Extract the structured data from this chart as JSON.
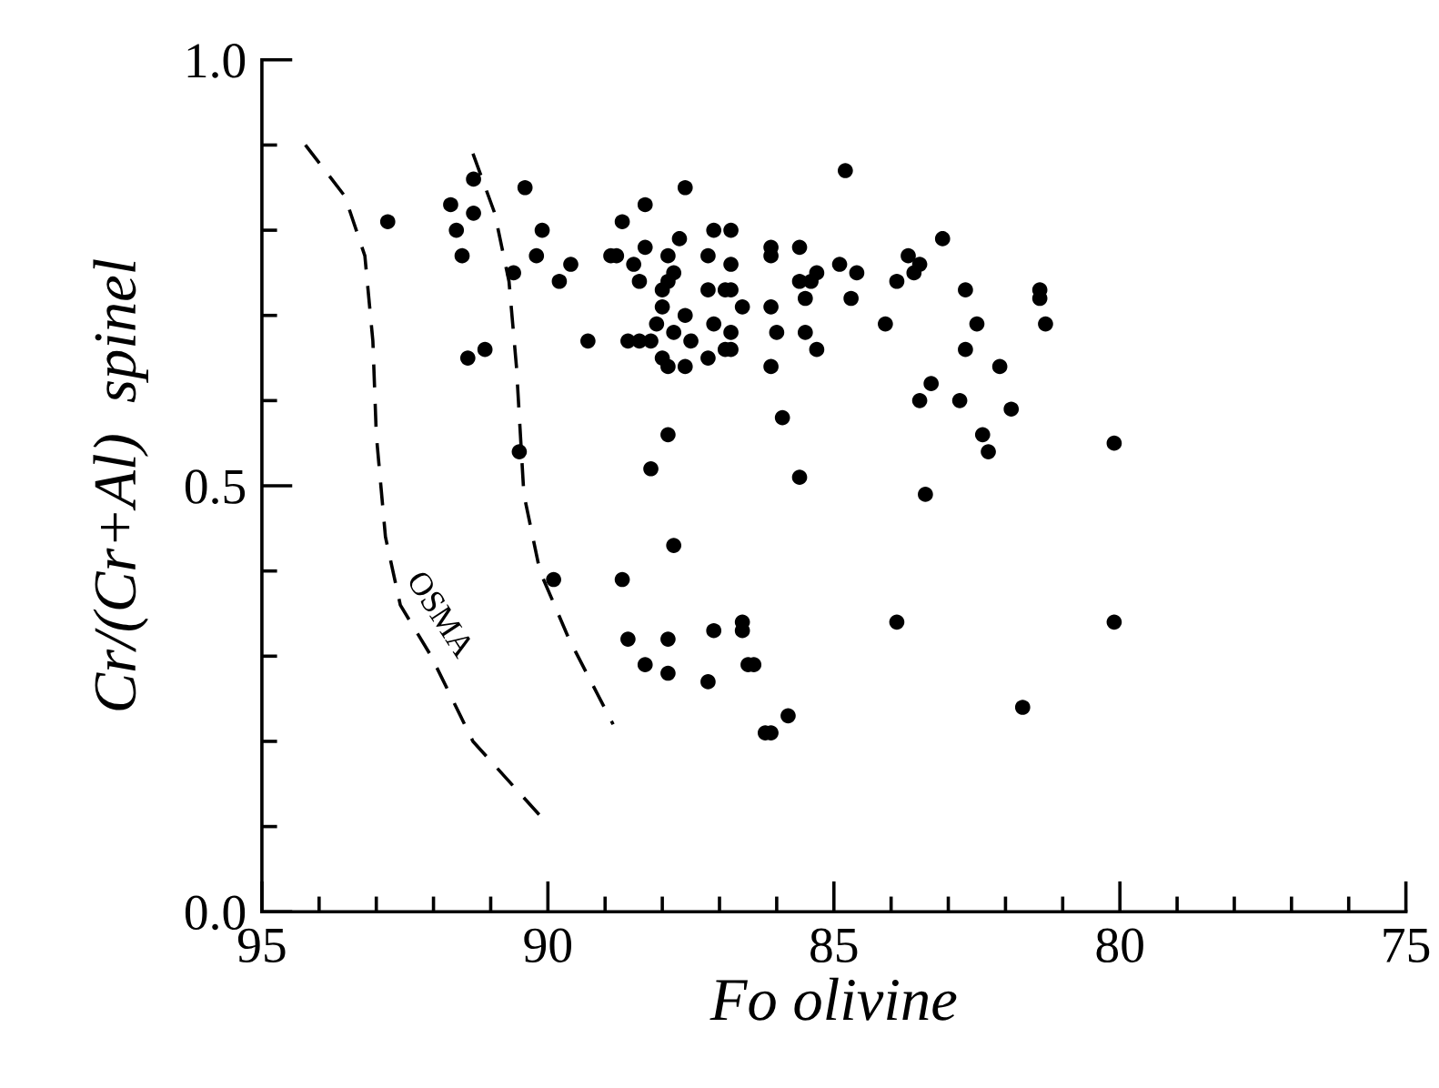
{
  "chart_data": {
    "type": "scatter",
    "xlabel": "Fo olivine",
    "ylabel": "Cr/(Cr+Al)  spinel",
    "xlim": [
      95,
      75
    ],
    "ylim": [
      0,
      1
    ],
    "xticks": [
      95,
      {
        "value": 94,
        "label": null
      },
      {
        "value": 93,
        "label": null
      },
      {
        "value": 92,
        "label": null
      },
      {
        "value": 91,
        "label": null
      },
      90,
      {
        "value": 89,
        "label": null
      },
      {
        "value": 88,
        "label": null
      },
      {
        "value": 87,
        "label": null
      },
      {
        "value": 86,
        "label": null
      },
      85,
      {
        "value": 84,
        "label": null
      },
      {
        "value": 83,
        "label": null
      },
      {
        "value": 82,
        "label": null
      },
      {
        "value": 81,
        "label": null
      },
      80,
      {
        "value": 79,
        "label": null
      },
      {
        "value": 78,
        "label": null
      },
      {
        "value": 77,
        "label": null
      },
      {
        "value": 76,
        "label": null
      },
      75
    ],
    "yticks": [
      {
        "value": 0,
        "label": "0.0"
      },
      {
        "value": 0.1,
        "label": null
      },
      {
        "value": 0.2,
        "label": null
      },
      {
        "value": 0.3,
        "label": null
      },
      {
        "value": 0.4,
        "label": null
      },
      0.5,
      {
        "value": 0.6,
        "label": null
      },
      {
        "value": 0.7,
        "label": null
      },
      {
        "value": 0.8,
        "label": null
      },
      {
        "value": 0.9,
        "label": null
      },
      {
        "value": 1,
        "label": "1.0"
      }
    ],
    "grid": false,
    "legend": false,
    "annotations": [
      "OSMA"
    ],
    "series": [
      {
        "color": "#000000",
        "marker": "circle",
        "x": [
          92.8,
          91.7,
          91.6,
          91.3,
          91.3,
          91.5,
          90.4,
          90.1,
          90.2,
          90.6,
          89.8,
          89.6,
          88.9,
          88.8,
          88.5,
          88.4,
          88.7,
          88.3,
          88.3,
          89.3,
          88.6,
          88.4,
          88.2,
          91.4,
          91.1,
          90.5,
          88.2,
          89.9,
          88.7,
          88.6,
          88.3,
          84.8,
          87.6,
          87.9,
          87.7,
          87.1,
          86.8,
          87.2,
          86.8,
          86.1,
          86.1,
          85.6,
          84.9,
          84.6,
          85.6,
          85.4,
          85.3,
          85.5,
          84.7,
          87.8,
          87.9,
          88.0,
          88.0,
          87.2,
          86.9,
          86.8,
          86.6,
          87.6,
          88.1,
          87.1,
          86.1,
          86.0,
          85.5,
          84.1,
          87.8,
          87.5,
          86.8,
          86.9,
          86.8,
          87.2,
          88.0,
          87.9,
          87.6,
          86.1,
          85.3,
          83.7,
          83.5,
          83.6,
          83.9,
          83.5,
          87.9,
          85.9,
          83.1,
          82.7,
          81.4,
          81.4,
          82.5,
          81.3,
          82.7,
          82.1,
          83.3,
          82.8,
          81.9,
          82.4,
          82.3,
          80.1,
          83.4,
          85.6,
          87.8,
          87.9,
          87.1,
          86.6,
          86.6,
          83.9,
          87.9,
          87.2,
          86.5,
          86.4,
          85.8,
          86.2,
          86.1,
          80.1,
          81.7
        ],
        "values": [
          0.81,
          0.83,
          0.8,
          0.82,
          0.86,
          0.77,
          0.85,
          0.8,
          0.77,
          0.75,
          0.74,
          0.76,
          0.77,
          0.77,
          0.76,
          0.74,
          0.81,
          0.83,
          0.78,
          0.67,
          0.67,
          0.67,
          0.67,
          0.65,
          0.66,
          0.54,
          0.52,
          0.39,
          0.39,
          0.32,
          0.29,
          0.87,
          0.85,
          0.77,
          0.79,
          0.8,
          0.8,
          0.77,
          0.76,
          0.78,
          0.77,
          0.78,
          0.76,
          0.75,
          0.74,
          0.74,
          0.75,
          0.72,
          0.72,
          0.75,
          0.74,
          0.73,
          0.71,
          0.73,
          0.73,
          0.73,
          0.71,
          0.7,
          0.69,
          0.69,
          0.71,
          0.68,
          0.68,
          0.69,
          0.68,
          0.67,
          0.68,
          0.66,
          0.66,
          0.65,
          0.65,
          0.64,
          0.64,
          0.64,
          0.66,
          0.77,
          0.76,
          0.75,
          0.74,
          0.6,
          0.56,
          0.58,
          0.79,
          0.73,
          0.73,
          0.72,
          0.69,
          0.69,
          0.66,
          0.64,
          0.62,
          0.6,
          0.59,
          0.56,
          0.54,
          0.55,
          0.49,
          0.51,
          0.43,
          0.32,
          0.33,
          0.34,
          0.33,
          0.34,
          0.28,
          0.27,
          0.29,
          0.29,
          0.23,
          0.21,
          0.21,
          0.34,
          0.24
        ]
      },
      {
        "type": "line",
        "color": "#000000",
        "line_style": "dashed",
        "marker": "none",
        "x": [
          94.24,
          93.55,
          93.2,
          93.06,
          93.0,
          92.84,
          92.58,
          92.04,
          91.31,
          90.1
        ],
        "values": [
          0.9,
          0.84,
          0.77,
          0.67,
          0.56,
          0.44,
          0.36,
          0.3,
          0.2,
          0.11
        ]
      },
      {
        "type": "line",
        "color": "#000000",
        "line_style": "dashed",
        "marker": "none",
        "x": [
          91.31,
          90.93,
          90.68,
          90.55,
          90.42,
          90.14,
          89.63,
          88.86
        ],
        "values": [
          0.89,
          0.82,
          0.74,
          0.64,
          0.49,
          0.4,
          0.32,
          0.22
        ]
      }
    ]
  }
}
